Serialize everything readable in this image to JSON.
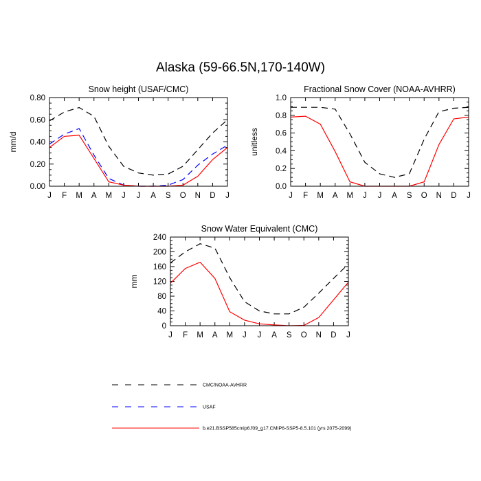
{
  "title": "Alaska (59-66.5N,170-140W)",
  "months": [
    "J",
    "F",
    "M",
    "A",
    "M",
    "J",
    "J",
    "A",
    "S",
    "O",
    "N",
    "D",
    "J"
  ],
  "colors": {
    "cmc": "#000000",
    "usaf": "#0000ff",
    "model": "#ff0000"
  },
  "legend": [
    {
      "label": "CMC/NOAA-AVHRR",
      "color": "#000000",
      "style": "dashed"
    },
    {
      "label": "USAF",
      "color": "#0000ff",
      "style": "dashed"
    },
    {
      "label": "b.e21.BSSP585cmip6.f09_g17.CMIP6-SSP5-8.5.101 (yrs 2075-2099)",
      "color": "#ff0000",
      "style": "solid"
    }
  ],
  "chart_data": [
    {
      "type": "line",
      "title": "Snow height (USAF/CMC)",
      "ylabel": "mm/d",
      "ylim": [
        0,
        0.8
      ],
      "yticks": [
        "0.00",
        "0.20",
        "0.40",
        "0.60",
        "0.80"
      ],
      "categories": [
        "J",
        "F",
        "M",
        "A",
        "M",
        "J",
        "J",
        "A",
        "S",
        "O",
        "N",
        "D",
        "J"
      ],
      "series": [
        {
          "name": "CMC/NOAA-AVHRR",
          "key": "cmc",
          "values": [
            0.59,
            0.67,
            0.71,
            0.63,
            0.36,
            0.18,
            0.12,
            0.1,
            0.11,
            0.18,
            0.33,
            0.48,
            0.6
          ]
        },
        {
          "name": "USAF",
          "key": "usaf",
          "values": [
            0.38,
            0.47,
            0.52,
            0.28,
            0.07,
            0.01,
            0.0,
            0.0,
            0.01,
            0.06,
            0.19,
            0.29,
            0.37
          ]
        },
        {
          "name": "b.e21.BSSP585cmip6.f09_g17.CMIP6-SSP5-8.5.101 (yrs 2075-2099)",
          "key": "model",
          "values": [
            0.35,
            0.45,
            0.46,
            0.25,
            0.04,
            0.01,
            0.0,
            0.0,
            0.0,
            0.01,
            0.09,
            0.24,
            0.35
          ]
        }
      ]
    },
    {
      "type": "line",
      "title": "Fractional Snow Cover (NOAA-AVHRR)",
      "ylabel": "unitless",
      "ylim": [
        0,
        1.0
      ],
      "yticks": [
        "0.0",
        "0.2",
        "0.4",
        "0.6",
        "0.8",
        "1.0"
      ],
      "categories": [
        "J",
        "F",
        "M",
        "A",
        "M",
        "J",
        "J",
        "A",
        "S",
        "O",
        "N",
        "D",
        "J"
      ],
      "series": [
        {
          "name": "CMC/NOAA-AVHRR",
          "key": "cmc",
          "values": [
            0.89,
            0.89,
            0.89,
            0.87,
            0.59,
            0.27,
            0.14,
            0.1,
            0.14,
            0.53,
            0.84,
            0.88,
            0.89
          ]
        },
        {
          "name": "b.e21.BSSP585cmip6.f09_g17.CMIP6-SSP5-8.5.101 (yrs 2075-2099)",
          "key": "model",
          "values": [
            0.78,
            0.79,
            0.7,
            0.39,
            0.05,
            0.0,
            0.0,
            0.0,
            0.0,
            0.05,
            0.47,
            0.76,
            0.78
          ]
        }
      ]
    },
    {
      "type": "line",
      "title": "Snow Water Equivalent (CMC)",
      "ylabel": "mm",
      "ylim": [
        0,
        240
      ],
      "yticks": [
        "0",
        "40",
        "80",
        "120",
        "160",
        "200",
        "240"
      ],
      "categories": [
        "J",
        "F",
        "M",
        "A",
        "M",
        "J",
        "J",
        "A",
        "S",
        "O",
        "N",
        "D",
        "J"
      ],
      "series": [
        {
          "name": "CMC/NOAA-AVHRR",
          "key": "cmc",
          "values": [
            170,
            200,
            222,
            210,
            130,
            65,
            40,
            32,
            32,
            50,
            88,
            128,
            167
          ]
        },
        {
          "name": "b.e21.BSSP585cmip6.f09_g17.CMIP6-SSP5-8.5.101 (yrs 2075-2099)",
          "key": "model",
          "values": [
            115,
            155,
            172,
            128,
            38,
            15,
            5,
            2,
            0,
            1,
            22,
            70,
            118
          ]
        }
      ]
    }
  ]
}
